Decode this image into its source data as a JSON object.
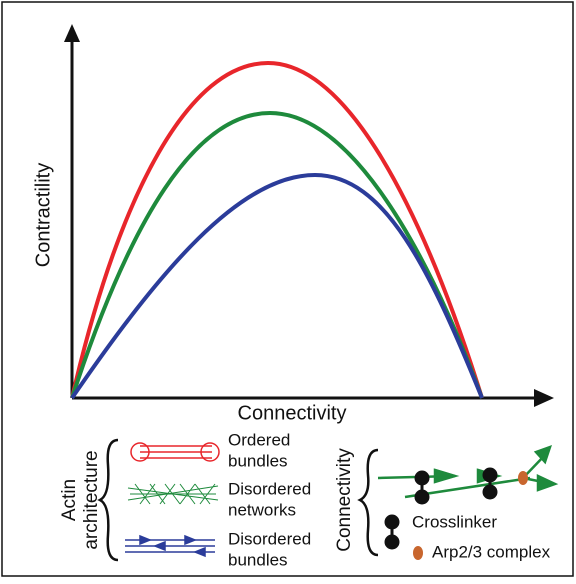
{
  "y_axis_label": "Contractility",
  "x_axis_label": "Connectivity",
  "architecture_legend": {
    "title": [
      "Actin",
      "architecture"
    ],
    "items": [
      {
        "lines": [
          "Ordered",
          "bundles"
        ],
        "color": "#e8262b"
      },
      {
        "lines": [
          "Disordered",
          "networks"
        ],
        "color": "#1e8a3c"
      },
      {
        "lines": [
          "Disordered",
          "bundles"
        ],
        "color": "#2b3c9a"
      }
    ]
  },
  "connectivity_legend": {
    "title": "Connectivity",
    "items": [
      "Crosslinker",
      "Arp2/3 complex"
    ]
  }
}
